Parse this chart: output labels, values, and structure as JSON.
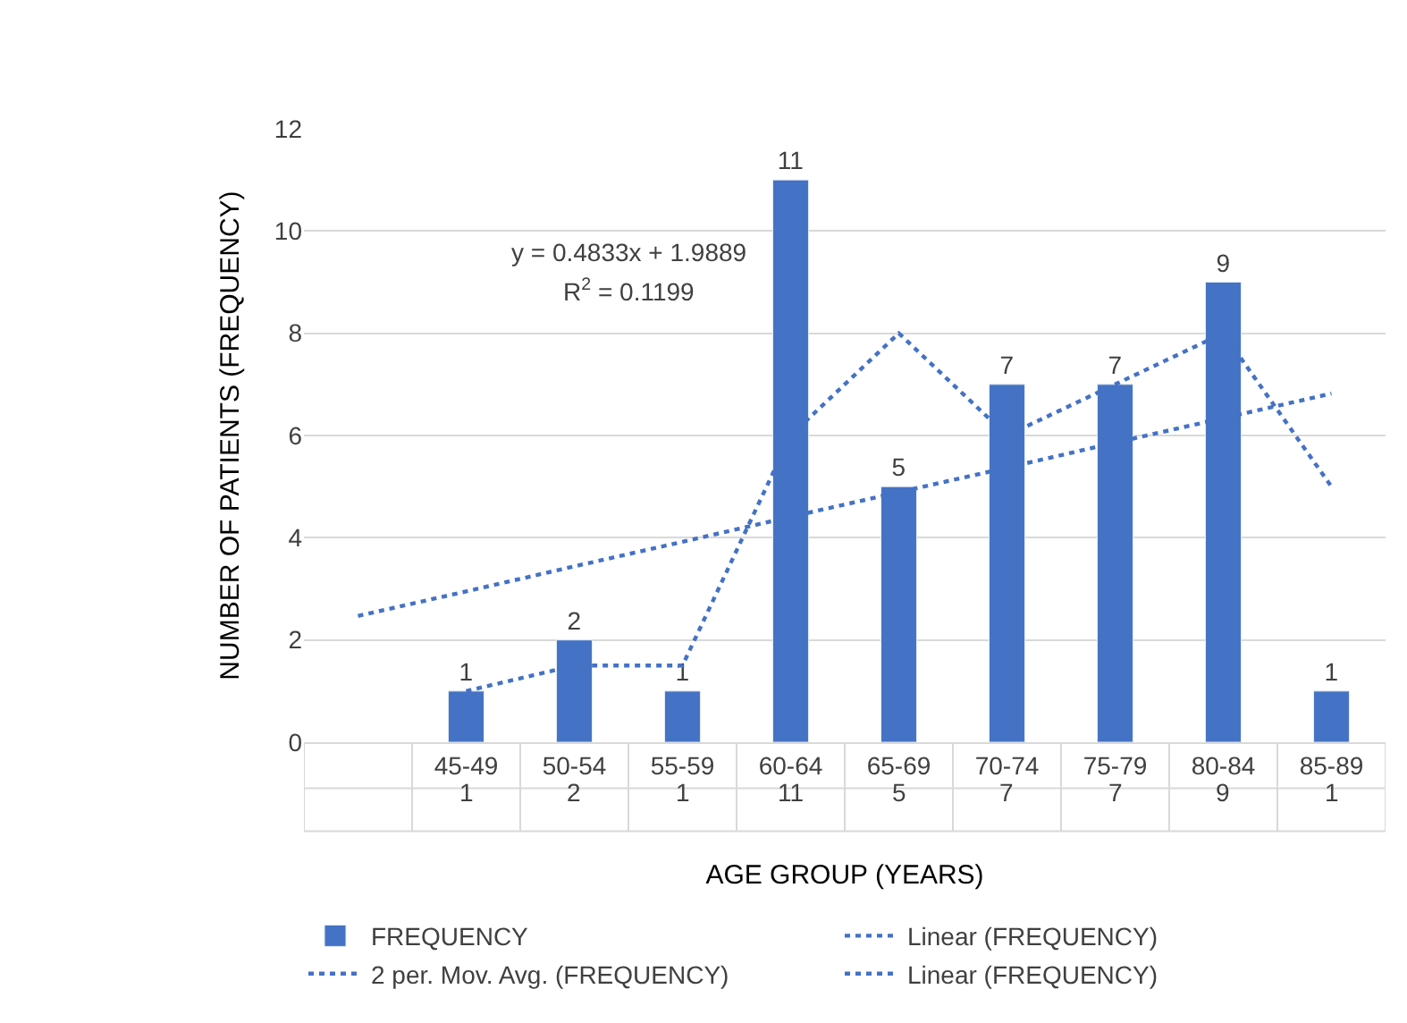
{
  "chart_data": {
    "type": "bar",
    "xlabel": "AGE GROUP (YEARS)",
    "ylabel": "NUMBER OF PATIENTS (FREQUENCY)",
    "categories": [
      null,
      "45-49",
      "50-54",
      "55-59",
      "60-64",
      "65-69",
      "70-74",
      "75-79",
      "80-84",
      "85-89"
    ],
    "series": [
      {
        "name": "FREQUENCY",
        "color": "#4472c4",
        "values": [
          null,
          1,
          2,
          1,
          11,
          5,
          7,
          7,
          9,
          1
        ],
        "value_labels": [
          null,
          "1",
          "2",
          "1",
          "11",
          "5",
          "7",
          "7",
          "9",
          "1"
        ]
      },
      {
        "name": "Linear (FREQUENCY)",
        "type": "line",
        "color": "#4472c4",
        "line_style": "dotted",
        "values": [
          2.47,
          2.95,
          3.44,
          3.92,
          4.41,
          4.89,
          5.37,
          5.86,
          6.34,
          6.82
        ]
      },
      {
        "name": "2 per. Mov. Avg. (FREQUENCY)",
        "type": "line",
        "color": "#4472c4",
        "line_style": "dotted",
        "values": [
          null,
          1,
          1.5,
          1.5,
          6,
          8,
          6,
          7,
          8,
          5
        ]
      },
      {
        "name": "Linear (FREQUENCY)",
        "type": "line",
        "color": "#4472c4",
        "line_style": "dotted",
        "values": [
          null,
          null,
          null,
          null,
          null,
          null,
          null,
          null,
          null,
          null
        ]
      }
    ],
    "ylim": [
      0,
      12
    ],
    "yticks": [
      0,
      2,
      4,
      6,
      8,
      10,
      12
    ],
    "grid": "y",
    "legend": "bottom",
    "marker": "none",
    "annotations": [
      "y = 0.4833x + 1.9889",
      "R$^{2}$ = 0.1199"
    ]
  }
}
